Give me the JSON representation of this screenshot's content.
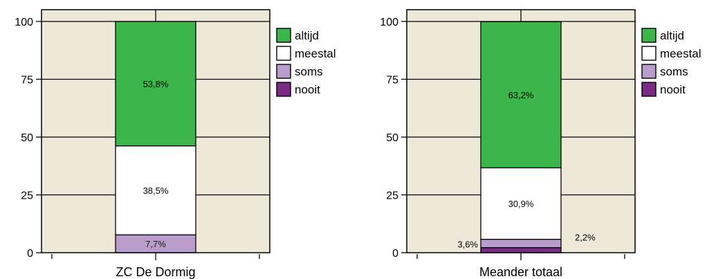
{
  "colors": {
    "plot_bg": "#ede8d8",
    "frame": "#000000",
    "altijd": "#3cb64a",
    "meestal": "#ffffff",
    "soms": "#b99ccb",
    "nooit": "#7b2a84"
  },
  "chart_data": [
    {
      "type": "bar",
      "stacked": true,
      "categories": [
        "ZC De Dormig"
      ],
      "ylim": [
        0,
        100
      ],
      "yticks": [
        0,
        25,
        50,
        75,
        100
      ],
      "grid": true,
      "legend_position": "right",
      "series": [
        {
          "name": "nooit",
          "values": [
            0
          ],
          "label": ""
        },
        {
          "name": "soms",
          "values": [
            7.7
          ],
          "label": "7,7%"
        },
        {
          "name": "meestal",
          "values": [
            38.5
          ],
          "label": "38,5%"
        },
        {
          "name": "altijd",
          "values": [
            53.8
          ],
          "label": "53,8%"
        }
      ]
    },
    {
      "type": "bar",
      "stacked": true,
      "categories": [
        "Meander totaal"
      ],
      "ylim": [
        0,
        100
      ],
      "yticks": [
        0,
        25,
        50,
        75,
        100
      ],
      "grid": true,
      "legend_position": "right",
      "series": [
        {
          "name": "nooit",
          "values": [
            2.2
          ],
          "label": "2,2%"
        },
        {
          "name": "soms",
          "values": [
            3.6
          ],
          "label": "3,6%"
        },
        {
          "name": "meestal",
          "values": [
            30.9
          ],
          "label": "30,9%"
        },
        {
          "name": "altijd",
          "values": [
            63.2
          ],
          "label": "63,2%"
        }
      ]
    }
  ],
  "legend": [
    "altijd",
    "meestal",
    "soms",
    "nooit"
  ]
}
